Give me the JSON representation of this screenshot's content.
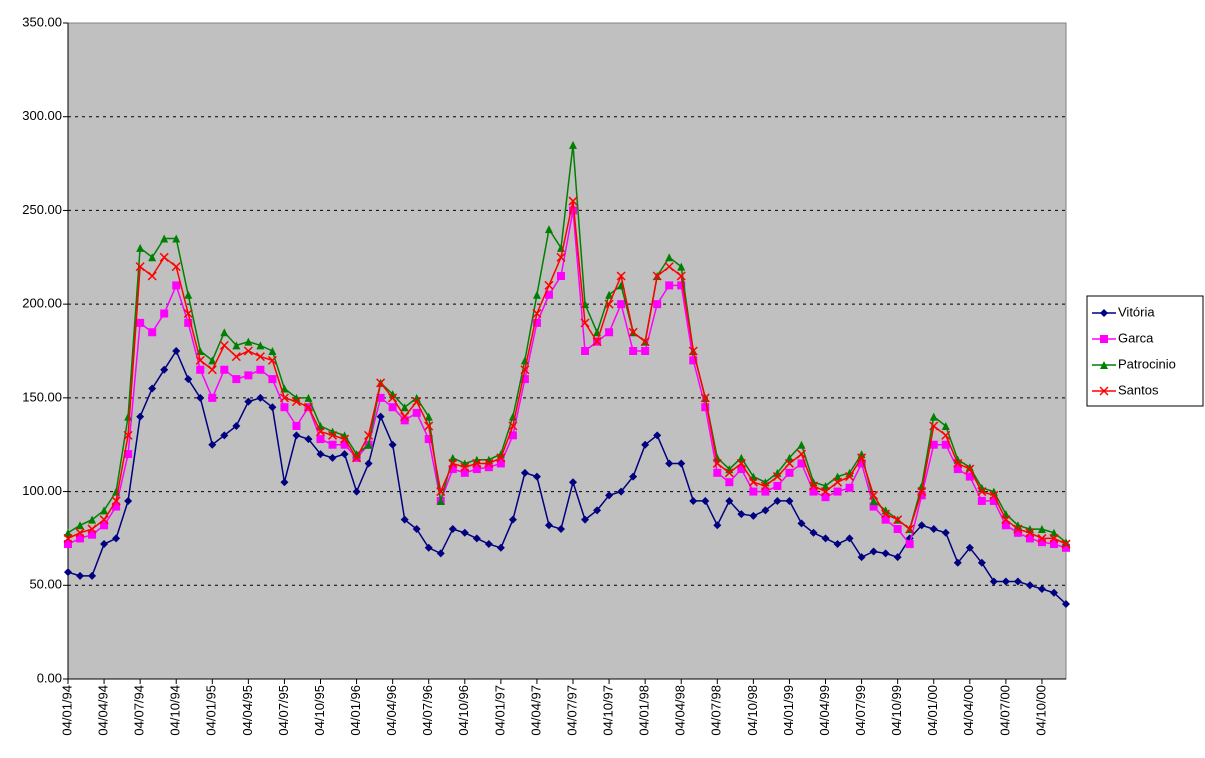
{
  "chart_data": {
    "type": "line",
    "categories": [
      "04/01/94",
      null,
      null,
      "04/04/94",
      null,
      null,
      "04/07/94",
      null,
      null,
      "04/10/94",
      null,
      null,
      "04/01/95",
      null,
      null,
      "04/04/95",
      null,
      null,
      "04/07/95",
      null,
      null,
      "04/10/95",
      null,
      null,
      "04/01/96",
      null,
      null,
      "04/04/96",
      null,
      null,
      "04/07/96",
      null,
      null,
      "04/10/96",
      null,
      null,
      "04/01/97",
      null,
      null,
      "04/04/97",
      null,
      null,
      "04/07/97",
      null,
      null,
      "04/10/97",
      null,
      null,
      "04/01/98",
      null,
      null,
      "04/04/98",
      null,
      null,
      "04/07/98",
      null,
      null,
      "04/10/98",
      null,
      null,
      "04/01/99",
      null,
      null,
      "04/04/99",
      null,
      null,
      "04/07/99",
      null,
      null,
      "04/10/99",
      null,
      null,
      "04/01/00",
      null,
      null,
      "04/04/00",
      null,
      null,
      "04/07/00",
      null,
      null,
      "04/10/00",
      null,
      null
    ],
    "series": [
      {
        "name": "Vitória",
        "color": "#000080",
        "marker": "diamond",
        "values": [
          57,
          55,
          55,
          72,
          75,
          95,
          140,
          155,
          165,
          175,
          160,
          150,
          125,
          130,
          135,
          148,
          150,
          145,
          105,
          130,
          128,
          120,
          118,
          120,
          100,
          115,
          140,
          125,
          85,
          80,
          70,
          67,
          80,
          78,
          75,
          72,
          70,
          85,
          110,
          108,
          82,
          80,
          105,
          85,
          90,
          98,
          100,
          108,
          125,
          130,
          115,
          115,
          95,
          95,
          82,
          95,
          88,
          87,
          90,
          95,
          95,
          83,
          78,
          75,
          72,
          75,
          65,
          68,
          67,
          65,
          75,
          82,
          80,
          78,
          62,
          70,
          62,
          52,
          52,
          52,
          50,
          48,
          46,
          40
        ]
      },
      {
        "name": "Garca",
        "color": "#ff00ff",
        "marker": "square",
        "values": [
          72,
          75,
          77,
          82,
          92,
          120,
          190,
          185,
          195,
          210,
          190,
          165,
          150,
          165,
          160,
          162,
          165,
          160,
          145,
          135,
          145,
          128,
          125,
          125,
          118,
          125,
          150,
          145,
          138,
          142,
          128,
          95,
          112,
          110,
          112,
          113,
          115,
          130,
          160,
          190,
          205,
          215,
          250,
          175,
          180,
          185,
          200,
          175,
          175,
          200,
          210,
          210,
          170,
          145,
          110,
          105,
          112,
          100,
          100,
          103,
          110,
          115,
          100,
          97,
          100,
          102,
          115,
          92,
          85,
          80,
          72,
          98,
          125,
          125,
          112,
          108,
          95,
          95,
          82,
          78,
          75,
          73,
          72,
          70
        ]
      },
      {
        "name": "Patrocinio",
        "color": "#008000",
        "marker": "triangle",
        "values": [
          78,
          82,
          85,
          90,
          100,
          140,
          230,
          225,
          235,
          235,
          205,
          175,
          170,
          185,
          178,
          180,
          178,
          175,
          155,
          150,
          150,
          135,
          132,
          130,
          120,
          125,
          158,
          152,
          145,
          150,
          140,
          95,
          118,
          115,
          117,
          117,
          120,
          140,
          170,
          205,
          240,
          230,
          285,
          200,
          185,
          205,
          210,
          185,
          180,
          215,
          225,
          220,
          175,
          150,
          118,
          112,
          118,
          108,
          105,
          110,
          118,
          125,
          105,
          103,
          108,
          110,
          120,
          95,
          90,
          85,
          80,
          103,
          140,
          135,
          117,
          113,
          102,
          100,
          88,
          82,
          80,
          80,
          78,
          73
        ]
      },
      {
        "name": "Santos",
        "color": "#ff0000",
        "marker": "x",
        "values": [
          75,
          78,
          80,
          85,
          95,
          130,
          220,
          215,
          225,
          220,
          195,
          170,
          165,
          178,
          172,
          175,
          172,
          170,
          150,
          148,
          145,
          132,
          130,
          128,
          118,
          130,
          158,
          150,
          140,
          148,
          135,
          100,
          115,
          113,
          115,
          115,
          118,
          135,
          165,
          195,
          210,
          225,
          255,
          190,
          180,
          200,
          215,
          185,
          180,
          215,
          220,
          215,
          175,
          150,
          115,
          110,
          115,
          105,
          103,
          108,
          115,
          120,
          103,
          100,
          105,
          108,
          118,
          98,
          88,
          85,
          80,
          100,
          135,
          130,
          115,
          112,
          100,
          98,
          85,
          80,
          78,
          75,
          75,
          72
        ]
      }
    ],
    "ylim": [
      0,
      350
    ],
    "yticks": [
      {
        "value": 0,
        "label": "0.00"
      },
      {
        "value": 50,
        "label": "50.00"
      },
      {
        "value": 100,
        "label": "100.00"
      },
      {
        "value": 150,
        "label": "150.00"
      },
      {
        "value": 200,
        "label": "200.00"
      },
      {
        "value": 250,
        "label": "250.00"
      },
      {
        "value": 300,
        "label": "300.00"
      },
      {
        "value": 350,
        "label": "350.00"
      }
    ],
    "grid": true,
    "background": "#c0c0c0",
    "legend": "right"
  }
}
